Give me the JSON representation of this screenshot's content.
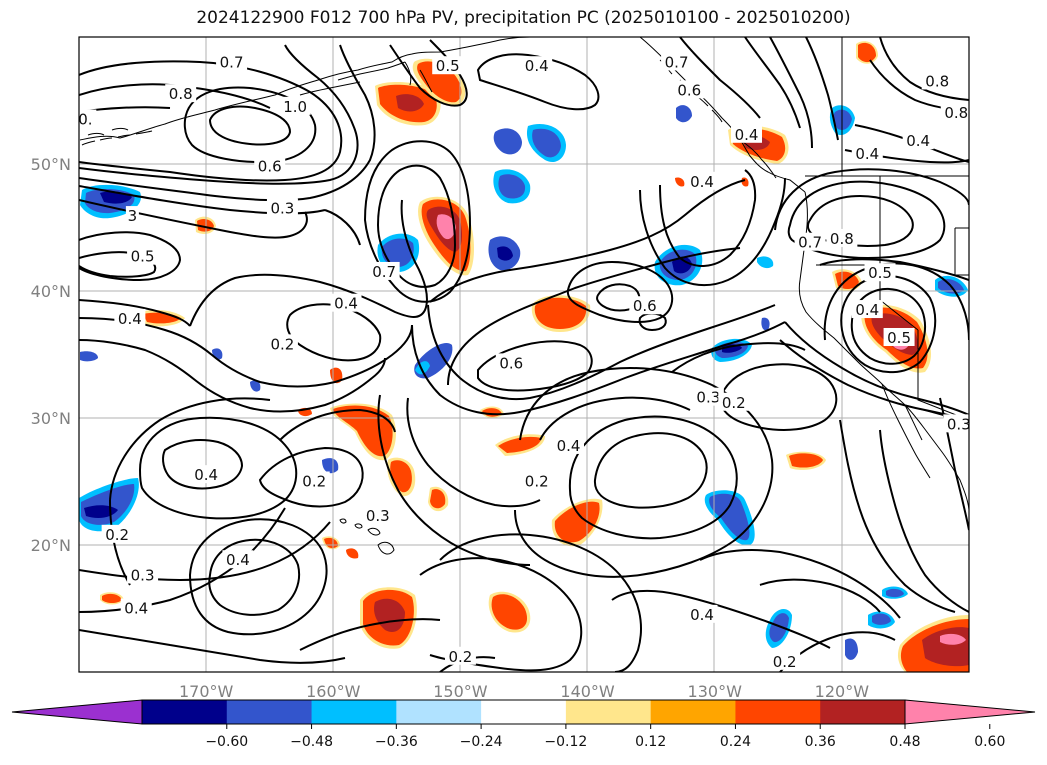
{
  "title": "2024122900 F012 700 hPa PV, precipitation PC (2025010100 - 2025010200)",
  "map": {
    "lon_range": [
      -180,
      -110
    ],
    "lat_range": [
      10,
      60
    ],
    "lon_ticks": [
      {
        "lon": -170,
        "label": "170°W"
      },
      {
        "lon": -160,
        "label": "160°W"
      },
      {
        "lon": -150,
        "label": "150°W"
      },
      {
        "lon": -140,
        "label": "140°W"
      },
      {
        "lon": -130,
        "label": "130°W"
      },
      {
        "lon": -120,
        "label": "120°W"
      }
    ],
    "lat_ticks": [
      {
        "lat": 50,
        "label": "50°N"
      },
      {
        "lat": 40,
        "label": "40°N"
      },
      {
        "lat": 30,
        "label": "30°N"
      },
      {
        "lat": 20,
        "label": "20°N"
      }
    ],
    "pv_contour_labels": [
      {
        "lon": -168,
        "lat": 58.0,
        "text": "0.7"
      },
      {
        "lon": -163,
        "lat": 54.5,
        "text": "1.0"
      },
      {
        "lon": -172,
        "lat": 55.5,
        "text": "0.8"
      },
      {
        "lon": -165,
        "lat": 49.8,
        "text": "0.6"
      },
      {
        "lon": -164,
        "lat": 46.5,
        "text": "0.3"
      },
      {
        "lon": -175,
        "lat": 42.7,
        "text": "0.5"
      },
      {
        "lon": -176,
        "lat": 37.8,
        "text": "0.4"
      },
      {
        "lon": -156,
        "lat": 41.5,
        "text": "0.7"
      },
      {
        "lon": -159,
        "lat": 39.0,
        "text": "0.4"
      },
      {
        "lon": -164,
        "lat": 35.8,
        "text": "0.2"
      },
      {
        "lon": -151,
        "lat": 57.7,
        "text": "0.5"
      },
      {
        "lon": -144,
        "lat": 57.7,
        "text": "0.4"
      },
      {
        "lon": -133,
        "lat": 58.0,
        "text": "0.7"
      },
      {
        "lon": -132,
        "lat": 55.8,
        "text": "0.6"
      },
      {
        "lon": -127.5,
        "lat": 52.3,
        "text": "0.4"
      },
      {
        "lon": -131,
        "lat": 48.6,
        "text": "0.4"
      },
      {
        "lon": -135.5,
        "lat": 38.8,
        "text": "0.6"
      },
      {
        "lon": -146,
        "lat": 34.3,
        "text": "0.6"
      },
      {
        "lon": -130.5,
        "lat": 31.6,
        "text": "0.3"
      },
      {
        "lon": -128.5,
        "lat": 31.2,
        "text": "0.2"
      },
      {
        "lon": -122.5,
        "lat": 43.8,
        "text": "0.7"
      },
      {
        "lon": -120,
        "lat": 44.1,
        "text": "0.8"
      },
      {
        "lon": -117,
        "lat": 41.4,
        "text": "0.5"
      },
      {
        "lon": -118,
        "lat": 38.5,
        "text": "0.4"
      },
      {
        "lon": -115.5,
        "lat": 36.3,
        "text": "0.5"
      },
      {
        "lon": -141.5,
        "lat": 27.8,
        "text": "0.4"
      },
      {
        "lon": -144,
        "lat": 25.0,
        "text": "0.2"
      },
      {
        "lon": -170,
        "lat": 25.5,
        "text": "0.4"
      },
      {
        "lon": -161.5,
        "lat": 25.0,
        "text": "0.2"
      },
      {
        "lon": -156.5,
        "lat": 22.3,
        "text": "0.3"
      },
      {
        "lon": -177,
        "lat": 20.8,
        "text": "0.2"
      },
      {
        "lon": -175,
        "lat": 17.6,
        "text": "0.3"
      },
      {
        "lon": -167.5,
        "lat": 18.8,
        "text": "0.4"
      },
      {
        "lon": -175.5,
        "lat": 15.0,
        "text": "0.4"
      },
      {
        "lon": -131,
        "lat": 14.5,
        "text": "0.4"
      },
      {
        "lon": -150,
        "lat": 11.2,
        "text": "0.2"
      },
      {
        "lon": -124.5,
        "lat": 10.8,
        "text": "0.2"
      },
      {
        "lon": -111,
        "lat": 54.0,
        "text": "0.8"
      },
      {
        "lon": -112.5,
        "lat": 56.5,
        "text": "0.8"
      },
      {
        "lon": -114,
        "lat": 51.8,
        "text": "0.4"
      },
      {
        "lon": -118,
        "lat": 50.8,
        "text": "0.4"
      },
      {
        "lon": -110.8,
        "lat": 29.5,
        "text": "0.3"
      },
      {
        "lon": -179.5,
        "lat": 53.5,
        "text": "0."
      },
      {
        "lon": -175.8,
        "lat": 45.9,
        "text": "3"
      }
    ]
  },
  "colorbar": {
    "ticks": [
      "−0.60",
      "−0.48",
      "−0.36",
      "−0.24",
      "−0.12",
      "0.12",
      "0.24",
      "0.36",
      "0.48",
      "0.60"
    ],
    "colors": [
      "#9b30d0",
      "#00008b",
      "#3355cc",
      "#00bfff",
      "#b0e2ff",
      "#ffffff",
      "#ffe68c",
      "#ffa500",
      "#ff4500",
      "#b22222",
      "#ff82ab"
    ]
  },
  "colors": {
    "dark_blue": "#00008b",
    "blue": "#3355cc",
    "cyan": "#00bfff",
    "light_blue": "#b0e2ff",
    "light_yellow": "#ffe68c",
    "orange": "#ffa500",
    "red_orange": "#ff4500",
    "dark_red": "#b22222",
    "pink": "#ff82ab"
  }
}
